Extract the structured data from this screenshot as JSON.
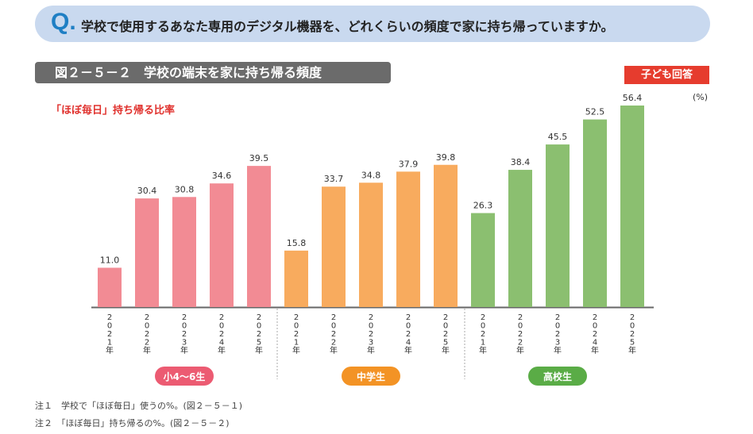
{
  "question": {
    "mark": "Q.",
    "text": "学校で使用するあなた専用のデジタル機器を、どれくらいの頻度で家に持ち帰っていますか。"
  },
  "figure_title": "図２－５－２　学校の端末を家に持ち帰る頻度",
  "respondent_badge": "子ども回答",
  "chart_data": {
    "type": "bar",
    "subtitle": "「ほぼ毎日」持ち帰る比率",
    "unit": "(%)",
    "categories": [
      "2021年",
      "2022年",
      "2023年",
      "2024年",
      "2025年"
    ],
    "groups": [
      {
        "name": "小4～6生",
        "color": "#f28b94",
        "label_color": "#ec5b72",
        "values": [
          11.0,
          30.4,
          30.8,
          34.6,
          39.5
        ]
      },
      {
        "name": "中学生",
        "color": "#f8ab5e",
        "label_color": "#f39325",
        "values": [
          15.8,
          33.7,
          34.8,
          37.9,
          39.8
        ]
      },
      {
        "name": "高校生",
        "color": "#8bbf70",
        "label_color": "#5aac46",
        "values": [
          26.3,
          38.4,
          45.5,
          52.5,
          56.4
        ]
      }
    ],
    "ylim": [
      0,
      60
    ],
    "grid": false
  },
  "notes": [
    "注１　学校で「ほぼ毎日」使うの%。(図２－５－１)",
    "注２　「ほぼ毎日」持ち帰るの%。(図２－５－２)"
  ]
}
